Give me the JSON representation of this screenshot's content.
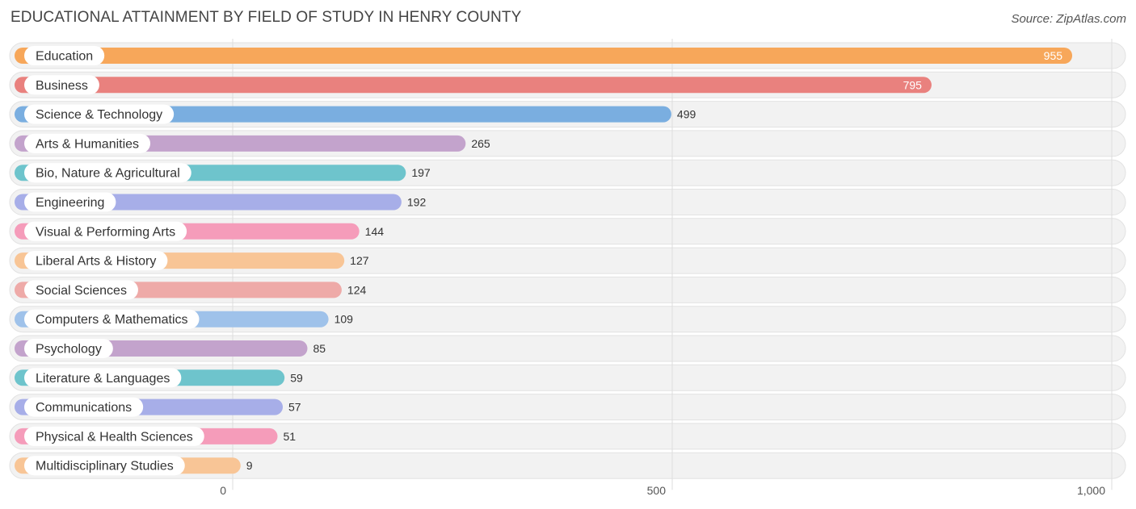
{
  "title": "EDUCATIONAL ATTAINMENT BY FIELD OF STUDY IN HENRY COUNTY",
  "source": "Source: ZipAtlas.com",
  "chart_data": {
    "type": "bar",
    "orientation": "horizontal",
    "title": "EDUCATIONAL ATTAINMENT BY FIELD OF STUDY IN HENRY COUNTY",
    "xlabel": "",
    "ylabel": "",
    "xlim": [
      0,
      1000
    ],
    "grid": true,
    "ticks": [
      {
        "value": 0,
        "label": "0"
      },
      {
        "value": 500,
        "label": "500"
      },
      {
        "value": 1000,
        "label": "1,000"
      }
    ],
    "categories": [
      "Education",
      "Business",
      "Science & Technology",
      "Arts & Humanities",
      "Bio, Nature & Agricultural",
      "Engineering",
      "Visual & Performing Arts",
      "Liberal Arts & History",
      "Social Sciences",
      "Computers & Mathematics",
      "Psychology",
      "Literature & Languages",
      "Communications",
      "Physical & Health Sciences",
      "Multidisciplinary Studies"
    ],
    "values": [
      955,
      795,
      499,
      265,
      197,
      192,
      144,
      127,
      124,
      109,
      85,
      59,
      57,
      51,
      9
    ],
    "value_labels": [
      "955",
      "795",
      "499",
      "265",
      "197",
      "192",
      "144",
      "127",
      "124",
      "109",
      "85",
      "59",
      "57",
      "51",
      "9"
    ],
    "colors": [
      "#f7a75a",
      "#e9817e",
      "#7aaee0",
      "#c3a3cc",
      "#6ec4cc",
      "#a7aee8",
      "#f59cba",
      "#f8c596",
      "#eeaaa8",
      "#9fc2ea",
      "#c3a3cc",
      "#6ec4cc",
      "#a7aee8",
      "#f59cba",
      "#f8c596"
    ]
  }
}
